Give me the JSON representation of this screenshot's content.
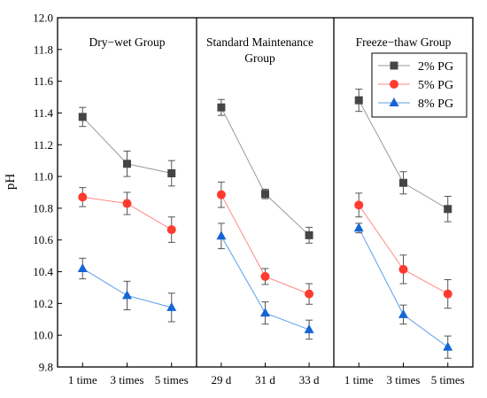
{
  "chart_data": {
    "type": "line",
    "ylabel": "pH",
    "ylim": [
      9.8,
      12.0
    ],
    "yticks": [
      "9.8",
      "10.0",
      "10.2",
      "10.4",
      "10.6",
      "10.8",
      "11.0",
      "11.2",
      "11.4",
      "11.6",
      "11.8",
      "12.0"
    ],
    "grid": false,
    "legend_position": "top-right",
    "legend_panel": 2,
    "series_styles": [
      {
        "name": "2% PG",
        "color": "#454545",
        "line_color": "#9a9a9a",
        "marker": "square"
      },
      {
        "name": "5% PG",
        "color": "#ff3b30",
        "line_color": "#ff8a8a",
        "marker": "circle"
      },
      {
        "name": "8% PG",
        "color": "#1565d6",
        "line_color": "#5aa0ea",
        "marker": "triangle"
      }
    ],
    "panels": [
      {
        "title_lines": [
          "Dry−wet Group"
        ],
        "categories": [
          "1 time",
          "3 times",
          "5 times"
        ],
        "series": [
          {
            "name": "2% PG",
            "values": [
              11.375,
              11.08,
              11.02
            ],
            "errors": [
              0.06,
              0.08,
              0.08
            ]
          },
          {
            "name": "5% PG",
            "values": [
              10.87,
              10.83,
              10.665
            ],
            "errors": [
              0.06,
              0.07,
              0.08
            ]
          },
          {
            "name": "8% PG",
            "values": [
              10.42,
              10.25,
              10.175
            ],
            "errors": [
              0.065,
              0.09,
              0.09
            ]
          }
        ]
      },
      {
        "title_lines": [
          "Standard Maintenance",
          "Group"
        ],
        "categories": [
          "29 d",
          "31 d",
          "33 d"
        ],
        "series": [
          {
            "name": "2% PG",
            "values": [
              11.435,
              10.89,
              10.63
            ],
            "errors": [
              0.05,
              0.03,
              0.05
            ]
          },
          {
            "name": "5% PG",
            "values": [
              10.885,
              10.37,
              10.26
            ],
            "errors": [
              0.08,
              0.05,
              0.065
            ]
          },
          {
            "name": "8% PG",
            "values": [
              10.625,
              10.14,
              10.035
            ],
            "errors": [
              0.08,
              0.07,
              0.06
            ]
          }
        ]
      },
      {
        "title_lines": [
          "Freeze−thaw Group"
        ],
        "categories": [
          "1 time",
          "3 times",
          "5 times"
        ],
        "series": [
          {
            "name": "2% PG",
            "values": [
              11.48,
              10.96,
              10.795
            ],
            "errors": [
              0.07,
              0.07,
              0.08
            ]
          },
          {
            "name": "5% PG",
            "values": [
              10.82,
              10.415,
              10.26
            ],
            "errors": [
              0.075,
              0.09,
              0.09
            ]
          },
          {
            "name": "8% PG",
            "values": [
              10.675,
              10.13,
              9.925
            ],
            "errors": [
              0.03,
              0.06,
              0.07
            ]
          }
        ]
      }
    ]
  }
}
